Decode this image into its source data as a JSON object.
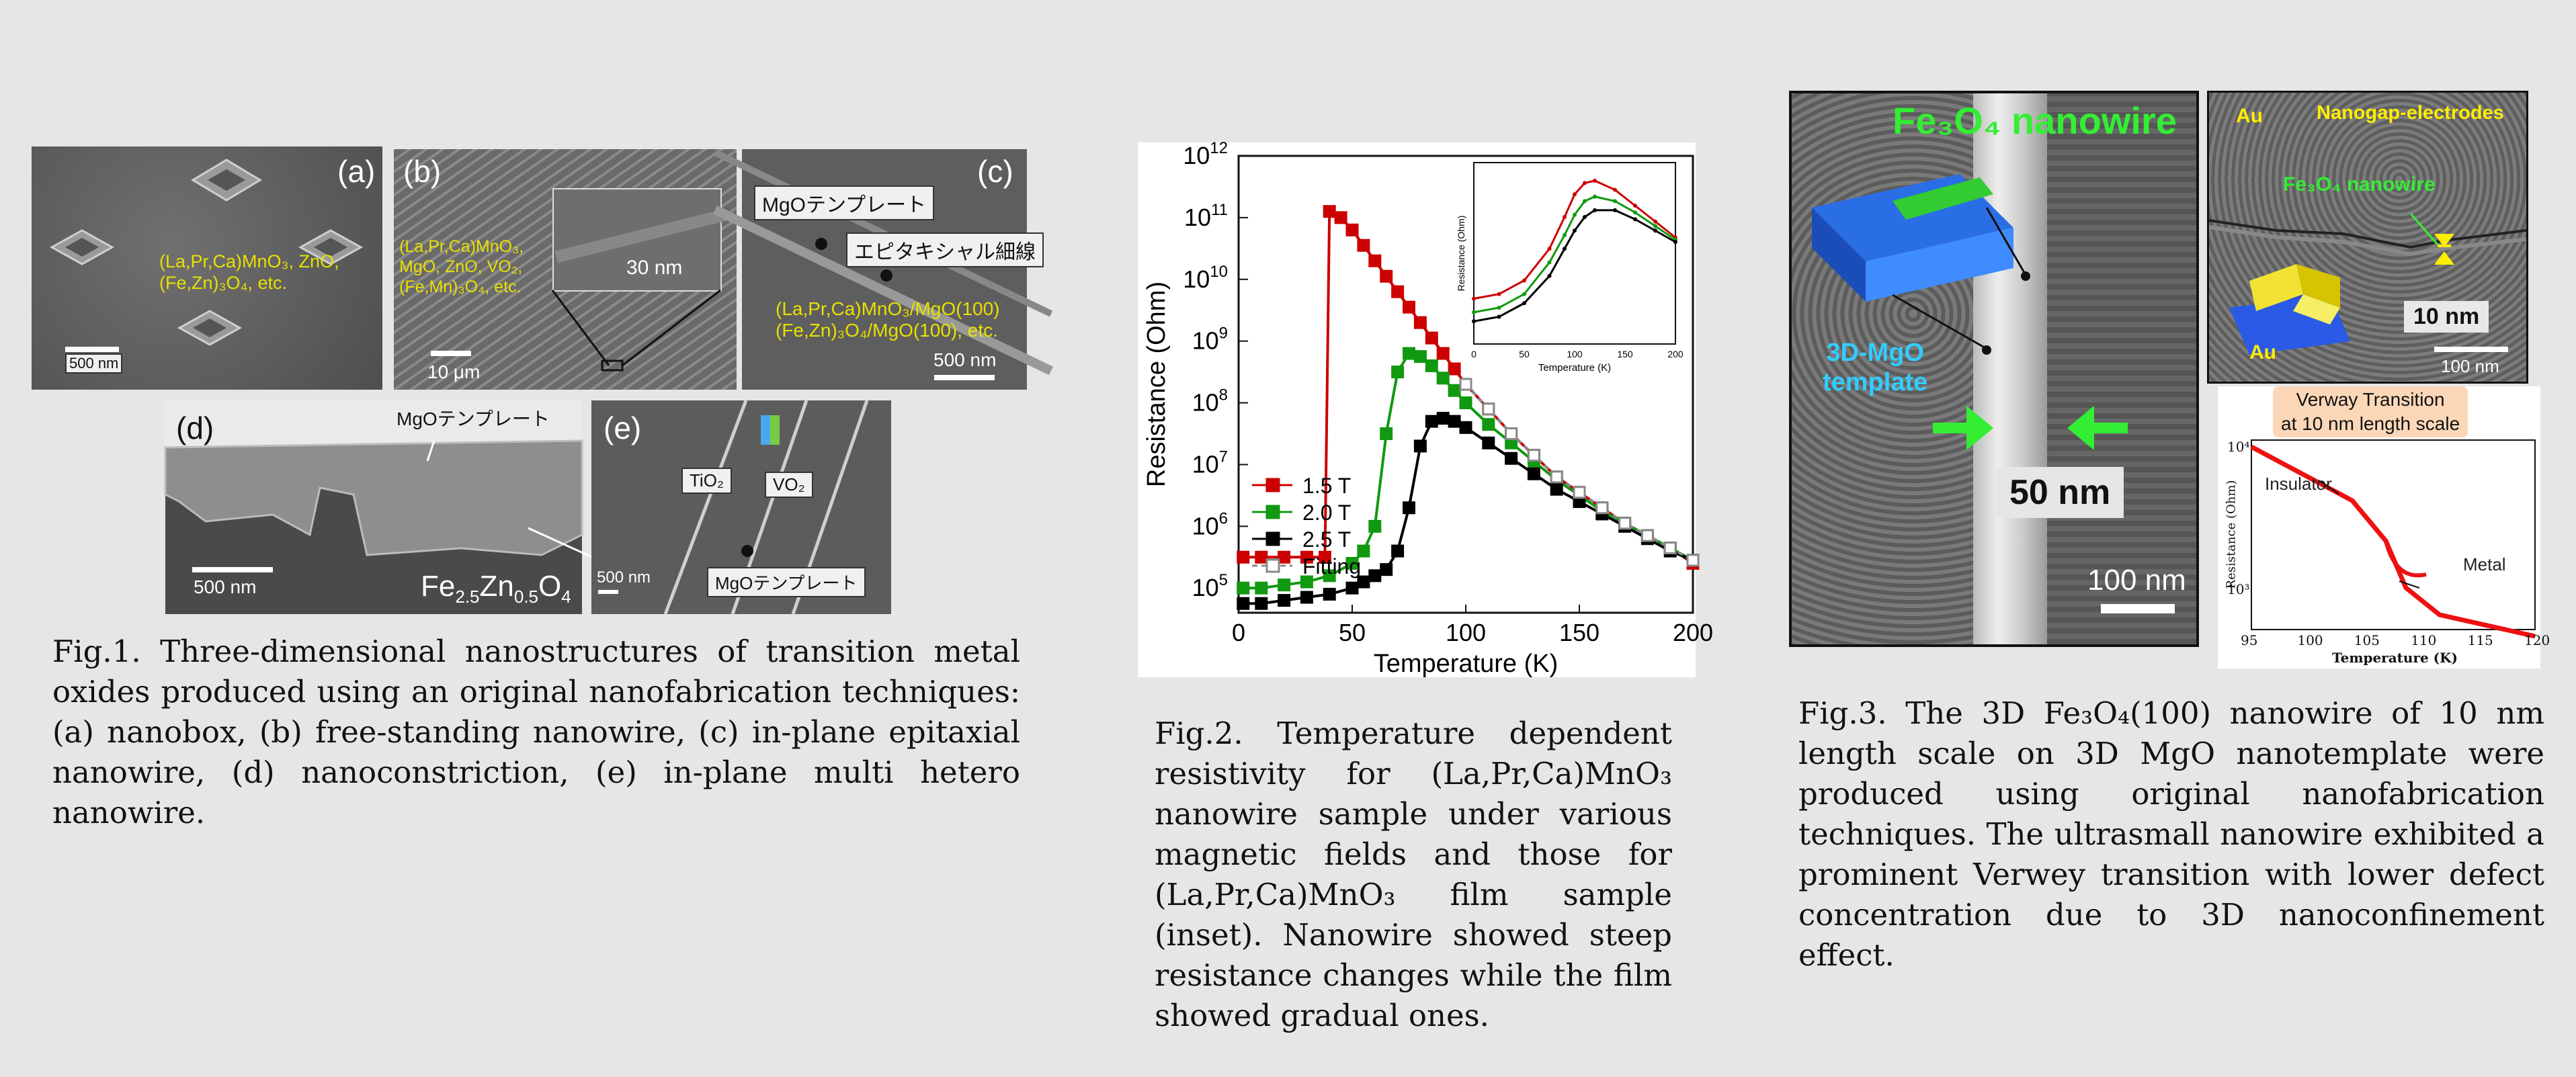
{
  "fig1": {
    "panels": {
      "a": {
        "letter": "(a)",
        "materials": "(La,Pr,Ca)MnO₃, ZnO,\n(Fe,Zn)₃O₄, etc.",
        "scale": "500 nm"
      },
      "b": {
        "letter": "(b)",
        "materials": "(La,Pr,Ca)MnO₃,\nMgO, ZnO, VO₂,\n(Fe,Mn)₃O₄, etc.",
        "scale": "10 μm",
        "inset_scale": "30 nm"
      },
      "c": {
        "letter": "(c)",
        "template_label": "MgOテンプレート",
        "wire_label": "エピタキシャル細線",
        "materials": "(La,Pr,Ca)MnO₃/MgO(100)\n(Fe,Zn)₃O₄/MgO(100), etc.",
        "scale": "500 nm"
      },
      "d": {
        "letter": "(d)",
        "template_label": "MgOテンプレート",
        "scale": "500 nm",
        "material": "Fe2.5Zn0.5O4"
      },
      "e": {
        "letter": "(e)",
        "tio2": "TiO₂",
        "vo2": "VO₂",
        "template_label": "MgOテンプレート",
        "scale": "500 nm"
      }
    },
    "caption": "Fig.1. Three-dimensional nanostructures of transition metal oxides produced using an original nanofabrication techniques: (a) nanobox, (b) free-standing nanowire, (c) in-plane epitaxial nanowire, (d) nanoconstriction, (e) in-plane multi hetero nanowire."
  },
  "chart_data": {
    "type": "line",
    "xlabel": "Temperature (K)",
    "ylabel": "Resistance (Ohm)",
    "xlim": [
      0,
      200
    ],
    "ylim_log10": [
      4.6,
      12
    ],
    "yscale": "log",
    "x_ticks": [
      0,
      50,
      100,
      150,
      200
    ],
    "y_ticks": [
      "10^5",
      "10^6",
      "10^7",
      "10^8",
      "10^9",
      "10^10",
      "10^11",
      "10^12"
    ],
    "legend_position": "lower-left",
    "series": [
      {
        "name": "1.5 T",
        "color": "#cc0000",
        "marker": "square",
        "x": [
          2,
          10,
          20,
          30,
          38,
          40,
          45,
          50,
          55,
          60,
          65,
          70,
          75,
          80,
          85,
          90,
          95,
          100,
          110,
          120,
          130,
          140,
          150,
          160,
          170,
          180,
          190,
          200
        ],
        "log10_y": [
          5.5,
          5.5,
          5.5,
          5.5,
          5.5,
          11.1,
          11.0,
          10.8,
          10.55,
          10.3,
          10.05,
          9.8,
          9.55,
          9.3,
          9.05,
          8.8,
          8.55,
          8.3,
          7.9,
          7.5,
          7.15,
          6.8,
          6.55,
          6.3,
          6.05,
          5.85,
          5.65,
          5.4
        ]
      },
      {
        "name": "2.0 T",
        "color": "#119911",
        "marker": "square",
        "x": [
          2,
          10,
          20,
          30,
          40,
          50,
          55,
          60,
          65,
          70,
          75,
          80,
          85,
          90,
          95,
          100,
          110,
          120,
          130,
          140,
          150,
          160,
          170,
          180,
          190,
          200
        ],
        "log10_y": [
          5.0,
          5.0,
          5.05,
          5.1,
          5.2,
          5.4,
          5.6,
          6.0,
          7.5,
          8.5,
          8.8,
          8.75,
          8.6,
          8.4,
          8.2,
          8.0,
          7.65,
          7.35,
          7.05,
          6.75,
          6.5,
          6.25,
          6.05,
          5.85,
          5.65,
          5.45
        ]
      },
      {
        "name": "2.5 T",
        "color": "#000000",
        "marker": "square",
        "x": [
          2,
          10,
          20,
          30,
          40,
          50,
          55,
          60,
          65,
          70,
          75,
          80,
          85,
          90,
          95,
          100,
          110,
          120,
          130,
          140,
          150,
          160,
          170,
          180,
          190,
          200
        ],
        "log10_y": [
          4.75,
          4.75,
          4.8,
          4.85,
          4.9,
          5.0,
          5.1,
          5.2,
          5.3,
          5.6,
          6.3,
          7.3,
          7.7,
          7.75,
          7.7,
          7.6,
          7.35,
          7.1,
          6.85,
          6.6,
          6.4,
          6.2,
          6.0,
          5.8,
          5.6,
          5.45
        ]
      },
      {
        "name": "Fitting",
        "color": "#888888",
        "marker": "open-square",
        "dashed": true,
        "x": [
          100,
          110,
          120,
          130,
          140,
          150,
          160,
          170,
          180,
          190,
          200
        ],
        "log10_y": [
          8.3,
          7.9,
          7.5,
          7.15,
          6.8,
          6.55,
          6.3,
          6.05,
          5.85,
          5.65,
          5.45
        ]
      }
    ],
    "inset": {
      "xlabel": "Temperature (K)",
      "ylabel": "Resistance (Ohm)",
      "x_ticks": [
        0,
        50,
        100,
        150,
        200
      ],
      "series": [
        {
          "color": "#cc0000",
          "x": [
            0,
            25,
            50,
            75,
            90,
            100,
            110,
            120,
            140,
            160,
            180,
            200
          ],
          "log10_y": [
            1.5,
            1.6,
            1.9,
            2.6,
            3.3,
            3.8,
            4.05,
            4.1,
            3.9,
            3.55,
            3.2,
            2.85
          ]
        },
        {
          "color": "#119911",
          "x": [
            0,
            25,
            50,
            75,
            90,
            100,
            110,
            120,
            140,
            160,
            180,
            200
          ],
          "log10_y": [
            1.2,
            1.3,
            1.6,
            2.3,
            2.9,
            3.35,
            3.65,
            3.75,
            3.65,
            3.4,
            3.1,
            2.8
          ]
        },
        {
          "color": "#000000",
          "x": [
            0,
            25,
            50,
            75,
            90,
            100,
            110,
            120,
            140,
            160,
            180,
            200
          ],
          "log10_y": [
            1.0,
            1.1,
            1.4,
            2.0,
            2.6,
            3.0,
            3.3,
            3.45,
            3.45,
            3.25,
            3.0,
            2.75
          ]
        }
      ]
    }
  },
  "fig2": {
    "caption": "Fig.2. Temperature dependent resistivity for (La,Pr,Ca)MnO₃ nanowire sample under various magnetic fields and those for (La,Pr,Ca)MnO₃ film sample (inset). Nanowire showed steep resistance changes while the film showed gradual ones."
  },
  "fig3": {
    "left": {
      "title": "Fe₃O₄ nanowire",
      "template_label": "3D-MgO\ntemplate",
      "width_label": "50 nm",
      "scale": "100 nm"
    },
    "right_top": {
      "au_top": "Au",
      "electrodes": "Nanogap-electrodes",
      "nanowire": "Fe₃O₄ nanowire",
      "au_bottom": "Au",
      "gap": "10 nm",
      "scale": "100 nm"
    },
    "right_bottom": {
      "title_line1": "Verway Transition",
      "title_line2": "at 10 nm length scale",
      "ylabel": "Resistance (Ohm)",
      "xlabel": "Temperature (K)",
      "x_ticks": [
        95,
        100,
        105,
        110,
        115,
        120
      ],
      "y_top": "10⁴",
      "y_bottom": "10³",
      "insulator": "Insulator",
      "metal": "Metal"
    },
    "caption": "Fig.3. The 3D Fe₃O₄(100) nanowire of 10 nm length scale on 3D MgO nanotemplate were produced using original nanofabrication techniques. The ultrasmall nanowire exhibited a prominent Verwey transition with lower defect concentration due to 3D nanoconfinement effect."
  }
}
